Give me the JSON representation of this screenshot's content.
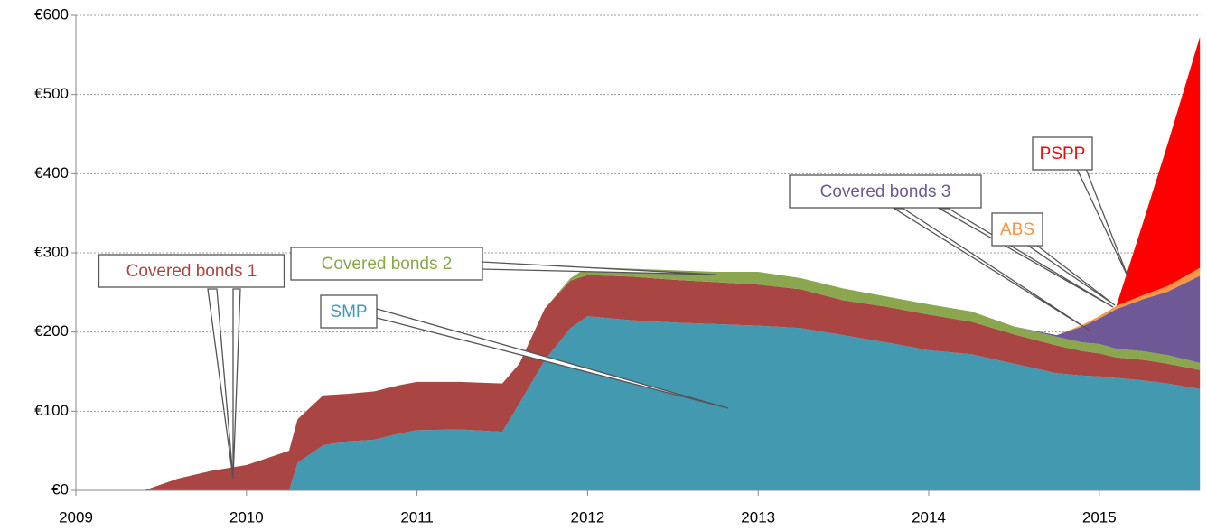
{
  "chart_data": {
    "type": "stacked_area",
    "x": [
      2009.0,
      2009.4,
      2009.6,
      2009.8,
      2010.0,
      2010.25,
      2010.3,
      2010.45,
      2010.6,
      2010.75,
      2010.9,
      2011.0,
      2011.25,
      2011.5,
      2011.6,
      2011.75,
      2011.9,
      2012.0,
      2012.25,
      2012.5,
      2012.75,
      2013.0,
      2013.25,
      2013.5,
      2013.75,
      2014.0,
      2014.25,
      2014.5,
      2014.75,
      2014.9,
      2015.0,
      2015.1,
      2015.25,
      2015.4,
      2015.59
    ],
    "series": [
      {
        "name": "SMP",
        "color": "#4299b0",
        "values": [
          0,
          0,
          0,
          0,
          0,
          0,
          35,
          57,
          62,
          64,
          72,
          76,
          77,
          74,
          110,
          165,
          205,
          220,
          215,
          212,
          210,
          208,
          205,
          196,
          187,
          177,
          172,
          160,
          148,
          145,
          144,
          142,
          139,
          135,
          128
        ]
      },
      {
        "name": "Covered bonds 1",
        "color": "#a94543",
        "values": [
          0,
          0,
          15,
          25,
          32,
          50,
          55,
          63,
          60,
          61,
          61,
          61,
          60,
          61,
          50,
          65,
          60,
          52,
          55,
          54,
          53,
          52,
          49,
          44,
          45,
          45,
          41,
          37,
          35,
          31,
          29,
          26,
          26,
          25,
          24
        ]
      },
      {
        "name": "Covered bonds 2",
        "color": "#8aa74f",
        "values": [
          0,
          0,
          0,
          0,
          0,
          0,
          0,
          0,
          0,
          0,
          0,
          0,
          0,
          0,
          0,
          0,
          3,
          10,
          10,
          12,
          13,
          16,
          14,
          15,
          13,
          13,
          13,
          10,
          11,
          11,
          12,
          11,
          11,
          11,
          9
        ]
      },
      {
        "name": "Covered bonds 3",
        "color": "#6f5896",
        "values": [
          0,
          0,
          0,
          0,
          0,
          0,
          0,
          0,
          0,
          0,
          0,
          0,
          0,
          0,
          0,
          0,
          0,
          0,
          0,
          0,
          0,
          0,
          0,
          0,
          0,
          0,
          0,
          0,
          2,
          20,
          32,
          50,
          65,
          80,
          110
        ]
      },
      {
        "name": "ABS",
        "color": "#f79646",
        "values": [
          0,
          0,
          0,
          0,
          0,
          0,
          0,
          0,
          0,
          0,
          0,
          0,
          0,
          0,
          0,
          0,
          0,
          0,
          0,
          0,
          0,
          0,
          0,
          0,
          0,
          0,
          0,
          0,
          0,
          2,
          3,
          4,
          5,
          7,
          10
        ]
      },
      {
        "name": "PSPP",
        "color": "#ff0000",
        "values": [
          0,
          0,
          0,
          0,
          0,
          0,
          0,
          0,
          0,
          0,
          0,
          0,
          0,
          0,
          0,
          0,
          0,
          0,
          0,
          0,
          0,
          0,
          0,
          0,
          0,
          0,
          0,
          0,
          0,
          0,
          0,
          0,
          88,
          179,
          292
        ]
      }
    ],
    "xlim": [
      2009,
      2015.59
    ],
    "xticks": [
      2009,
      2010,
      2011,
      2012,
      2013,
      2014,
      2015
    ],
    "ylim": [
      0,
      600
    ],
    "yticks": [
      {
        "value": 0,
        "label": "€0"
      },
      {
        "value": 100,
        "label": "€100"
      },
      {
        "value": 200,
        "label": "€200"
      },
      {
        "value": 300,
        "label": "€300"
      },
      {
        "value": 400,
        "label": "€400"
      },
      {
        "value": 500,
        "label": "€500"
      },
      {
        "value": 600,
        "label": "€600"
      }
    ],
    "grid": true
  }
}
